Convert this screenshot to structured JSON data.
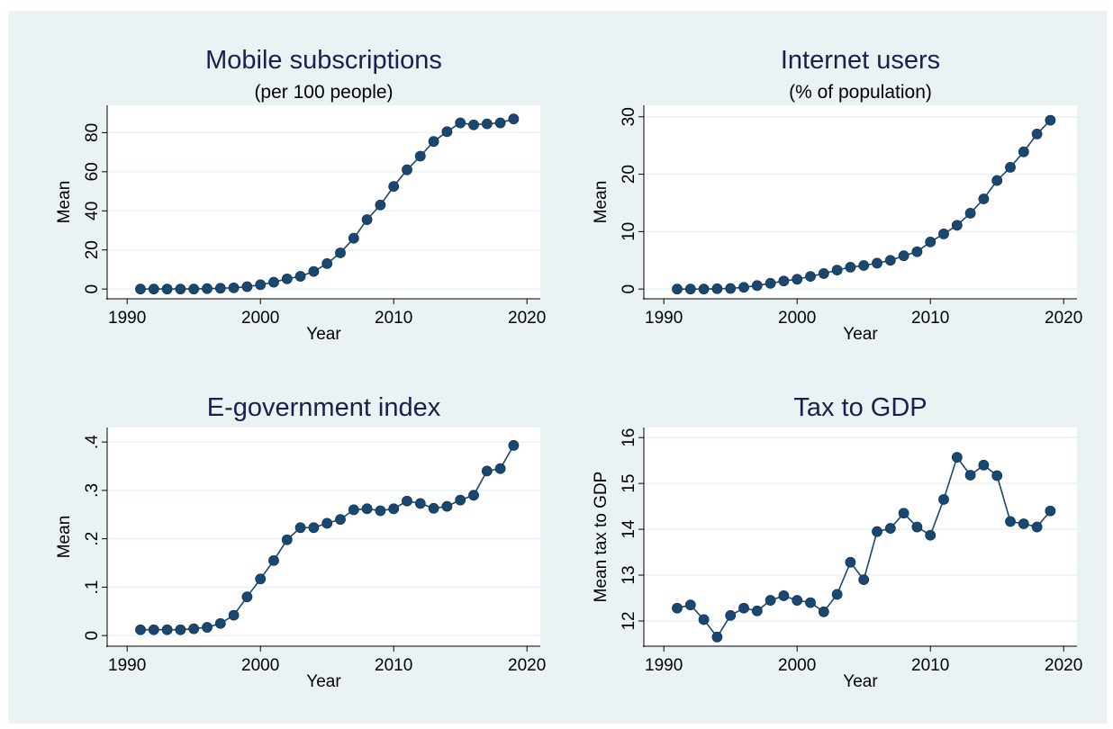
{
  "style": {
    "background": "#eaf2f3",
    "plot_background": "#ffffff",
    "grid_color": "#eaf2f3",
    "marker_color": "#1a476f",
    "line_color": "#1a476f",
    "title_color": "#1a1f4d"
  },
  "chart_data": [
    {
      "type": "line",
      "title": "Mobile subscriptions",
      "subtitle": "(per 100 people)",
      "xlabel": "Year",
      "ylabel": "Mean",
      "xlim": [
        1988.5,
        2021
      ],
      "ylim": [
        -5,
        94
      ],
      "xticks": [
        1990,
        2000,
        2010,
        2020
      ],
      "xtick_labels": [
        "1990",
        "2000",
        "2010",
        "2020"
      ],
      "yticks": [
        0,
        20,
        40,
        60,
        80
      ],
      "ytick_labels": [
        "0",
        "20",
        "40",
        "60",
        "80"
      ],
      "grid": true,
      "legend": "none",
      "x": [
        1991,
        1992,
        1993,
        1994,
        1995,
        1996,
        1997,
        1998,
        1999,
        2000,
        2001,
        2002,
        2003,
        2004,
        2005,
        2006,
        2007,
        2008,
        2009,
        2010,
        2011,
        2012,
        2013,
        2014,
        2015,
        2016,
        2017,
        2018,
        2019
      ],
      "y": [
        0,
        0,
        0,
        0,
        0,
        0.2,
        0.4,
        0.6,
        1.2,
        2.2,
        3.5,
        5.2,
        6.5,
        9,
        13,
        18.5,
        26,
        35.5,
        43,
        52.5,
        61,
        68,
        75.5,
        80.5,
        85,
        84,
        84.5,
        85,
        87
      ]
    },
    {
      "type": "line",
      "title": "Internet users",
      "subtitle": "(% of population)",
      "xlabel": "Year",
      "ylabel": "Mean",
      "xlim": [
        1988.5,
        2021
      ],
      "ylim": [
        -1.7,
        32
      ],
      "xticks": [
        1990,
        2000,
        2010,
        2020
      ],
      "xtick_labels": [
        "1990",
        "2000",
        "2010",
        "2020"
      ],
      "yticks": [
        0,
        10,
        20,
        30
      ],
      "ytick_labels": [
        "0",
        "10",
        "20",
        "30"
      ],
      "grid": true,
      "legend": "none",
      "x": [
        1991,
        1992,
        1993,
        1994,
        1995,
        1996,
        1997,
        1998,
        1999,
        2000,
        2001,
        2002,
        2003,
        2004,
        2005,
        2006,
        2007,
        2008,
        2009,
        2010,
        2011,
        2012,
        2013,
        2014,
        2015,
        2016,
        2017,
        2018,
        2019
      ],
      "y": [
        0,
        0,
        0,
        0.05,
        0.1,
        0.3,
        0.6,
        1,
        1.4,
        1.7,
        2.2,
        2.7,
        3.3,
        3.8,
        4.1,
        4.5,
        5,
        5.8,
        6.5,
        8.2,
        9.6,
        11.1,
        13.2,
        15.7,
        18.9,
        21.2,
        23.9,
        27,
        29.4
      ]
    },
    {
      "type": "line",
      "title": "E-government index",
      "subtitle": "",
      "xlabel": "Year",
      "ylabel": "Mean",
      "xlim": [
        1988.5,
        2021
      ],
      "ylim": [
        -0.022,
        0.43
      ],
      "xticks": [
        1990,
        2000,
        2010,
        2020
      ],
      "xtick_labels": [
        "1990",
        "2000",
        "2010",
        "2020"
      ],
      "yticks": [
        0,
        0.1,
        0.2,
        0.3,
        0.4
      ],
      "ytick_labels": [
        "0",
        ".1",
        ".2",
        ".3",
        ".4"
      ],
      "grid": true,
      "legend": "none",
      "x": [
        1991,
        1992,
        1993,
        1994,
        1995,
        1996,
        1997,
        1998,
        1999,
        2000,
        2001,
        2002,
        2003,
        2004,
        2005,
        2006,
        2007,
        2008,
        2009,
        2010,
        2011,
        2012,
        2013,
        2014,
        2015,
        2016,
        2017,
        2018,
        2019
      ],
      "y": [
        0.012,
        0.012,
        0.012,
        0.012,
        0.014,
        0.017,
        0.025,
        0.042,
        0.08,
        0.117,
        0.155,
        0.198,
        0.223,
        0.223,
        0.232,
        0.24,
        0.26,
        0.262,
        0.258,
        0.262,
        0.278,
        0.273,
        0.263,
        0.267,
        0.28,
        0.29,
        0.34,
        0.345,
        0.393
      ]
    },
    {
      "type": "line",
      "title": "Tax to GDP",
      "subtitle": "",
      "xlabel": "Year",
      "ylabel": "Mean tax to GDP",
      "xlim": [
        1988.5,
        2021
      ],
      "ylim": [
        11.45,
        16.22
      ],
      "xticks": [
        1990,
        2000,
        2010,
        2020
      ],
      "xtick_labels": [
        "1990",
        "2000",
        "2010",
        "2020"
      ],
      "yticks": [
        12,
        13,
        14,
        15,
        16
      ],
      "ytick_labels": [
        "12",
        "13",
        "14",
        "15",
        "16"
      ],
      "grid": true,
      "legend": "none",
      "x": [
        1991,
        1992,
        1993,
        1994,
        1995,
        1996,
        1997,
        1998,
        1999,
        2000,
        2001,
        2002,
        2003,
        2004,
        2005,
        2006,
        2007,
        2008,
        2009,
        2010,
        2011,
        2012,
        2013,
        2014,
        2015,
        2016,
        2017,
        2018,
        2019
      ],
      "y": [
        12.28,
        12.35,
        12.03,
        11.65,
        12.12,
        12.28,
        12.22,
        12.45,
        12.55,
        12.45,
        12.4,
        12.2,
        12.58,
        13.28,
        12.9,
        13.95,
        14.02,
        14.35,
        14.05,
        13.87,
        14.65,
        15.57,
        15.18,
        15.4,
        15.17,
        14.17,
        14.12,
        14.05,
        14.4
      ]
    }
  ]
}
